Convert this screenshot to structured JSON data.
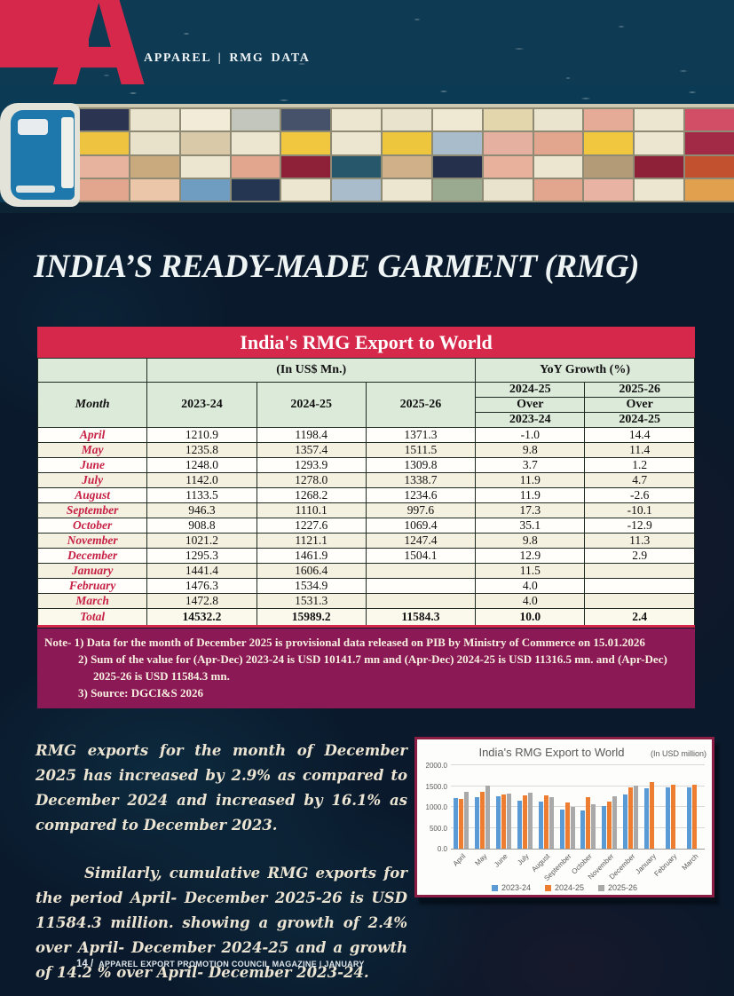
{
  "header": {
    "logo_letter": "A",
    "tagline": "APPAREL | RMG DATA"
  },
  "page_title": "INDIA’S READY-MADE GARMENT (RMG)",
  "colors": {
    "crimson": "#d5284a",
    "maroon_note": "#8b1956",
    "header_green": "#dcead9",
    "page_navy": "#0a192b",
    "chart_border": "#8c1d45"
  },
  "hero": {
    "description": "aerial photo of container ship on dark ocean",
    "container_colors": [
      [
        "#2b3450",
        "#eae3cd",
        "#f1ebd7",
        "#c2c6bd",
        "#46526a",
        "#ece6d0",
        "#e9e2cc",
        "#efe9d4",
        "#e3d6ad",
        "#eae3cd",
        "#e6ab97",
        "#ece5cf",
        "#d14e66"
      ],
      [
        "#eec33f",
        "#e9e2cb",
        "#d9c9a8",
        "#ece5cf",
        "#f0c73e",
        "#ece5cf",
        "#eec63e",
        "#a8bccb",
        "#e6b0a0",
        "#e2a58e",
        "#f0c73e",
        "#ece5cf",
        "#a32a47"
      ],
      [
        "#e8b39e",
        "#c9a97e",
        "#ece5cf",
        "#e2a58e",
        "#8e2138",
        "#27576a",
        "#d0b088",
        "#24304c",
        "#e8b19c",
        "#ece5cf",
        "#b39b77",
        "#8e2138",
        "#c2512f"
      ],
      [
        "#e2a58e",
        "#ecc6a8",
        "#6f9dc2",
        "#253652",
        "#ece5cf",
        "#a8bccb",
        "#ece5cf",
        "#9aaa90",
        "#e9e2cc",
        "#e2a58e",
        "#e8b3a2",
        "#ece5cf",
        "#e0a04e"
      ]
    ]
  },
  "table": {
    "title": "India's RMG Export to World",
    "usd_header": "(In US$ Mn.)",
    "yoy_header": "YoY Growth (%)",
    "month_header": "Month",
    "year_columns": [
      "2023-24",
      "2024-25",
      "2025-26"
    ],
    "growth_columns": [
      {
        "line1": "2024-25",
        "line2": "Over",
        "line3": "2023-24"
      },
      {
        "line1": "2025-26",
        "line2": "Over",
        "line3": "2024-25"
      }
    ],
    "rows": [
      [
        "April",
        "1210.9",
        "1198.4",
        "1371.3",
        "-1.0",
        "14.4"
      ],
      [
        "May",
        "1235.8",
        "1357.4",
        "1511.5",
        "9.8",
        "11.4"
      ],
      [
        "June",
        "1248.0",
        "1293.9",
        "1309.8",
        "3.7",
        "1.2"
      ],
      [
        "July",
        "1142.0",
        "1278.0",
        "1338.7",
        "11.9",
        "4.7"
      ],
      [
        "August",
        "1133.5",
        "1268.2",
        "1234.6",
        "11.9",
        "-2.6"
      ],
      [
        "September",
        "946.3",
        "1110.1",
        "997.6",
        "17.3",
        "-10.1"
      ],
      [
        "October",
        "908.8",
        "1227.6",
        "1069.4",
        "35.1",
        "-12.9"
      ],
      [
        "November",
        "1021.2",
        "1121.1",
        "1247.4",
        "9.8",
        "11.3"
      ],
      [
        "December",
        "1295.3",
        "1461.9",
        "1504.1",
        "12.9",
        "2.9"
      ],
      [
        "January",
        "1441.4",
        "1606.4",
        "",
        "11.5",
        ""
      ],
      [
        "February",
        "1476.3",
        "1534.9",
        "",
        "4.0",
        ""
      ],
      [
        "March",
        "1472.8",
        "1531.3",
        "",
        "4.0",
        ""
      ]
    ],
    "total_row": [
      "Total",
      "14532.2",
      "15989.2",
      "11584.3",
      "10.0",
      "2.4"
    ]
  },
  "note": {
    "line1": "Note- 1) Data for the month of December 2025 is provisional data released on PIB by Ministry of Commerce on 15.01.2026",
    "line2": "2) Sum of the value for (Apr-Dec) 2023-24 is USD 10141.7 mn and (Apr-Dec) 2024-25 is USD 11316.5 mn. and (Apr-Dec)",
    "line3": "2025-26 is USD 11584.3 mn.",
    "line4": "3) Source: DGCI&S 2026"
  },
  "body": {
    "paragraph1": "RMG exports for the month of December 2025 has increased by 2.9% as compared to December 2024 and increased by 16.1% as compared to December 2023.",
    "paragraph2": "Similarly, cumulative RMG exports for the period April- December 2025-26 is USD 11584.3 million. showing a growth of 2.4% over April- December 2024-25 and a growth of 14.2 % over April- December 2023-24."
  },
  "chart_data": {
    "type": "bar",
    "title": "India's RMG Export to World",
    "unit_label": "(In USD million)",
    "categories": [
      "April",
      "May",
      "June",
      "July",
      "August",
      "September",
      "October",
      "November",
      "December",
      "January",
      "February",
      "March"
    ],
    "series": [
      {
        "name": "2023-24",
        "color": "#5b9bd5",
        "values": [
          1210.9,
          1235.8,
          1248.0,
          1142.0,
          1133.5,
          946.3,
          908.8,
          1021.2,
          1295.3,
          1441.4,
          1476.3,
          1472.8
        ]
      },
      {
        "name": "2024-25",
        "color": "#ed7d31",
        "values": [
          1198.4,
          1357.4,
          1293.9,
          1278.0,
          1268.2,
          1110.1,
          1227.6,
          1121.1,
          1461.9,
          1606.4,
          1534.9,
          1531.3
        ]
      },
      {
        "name": "2025-26",
        "color": "#a9a9a9",
        "values": [
          1371.3,
          1511.5,
          1309.8,
          1338.7,
          1234.6,
          997.6,
          1069.4,
          1247.4,
          1504.1,
          null,
          null,
          null
        ]
      }
    ],
    "ylim": [
      0,
      2000
    ],
    "yticks": [
      "2000.0",
      "1500.0",
      "1000.0",
      "500.0",
      "0.0"
    ],
    "legend_position": "bottom",
    "grid": true
  },
  "footer": {
    "page_number": "14 /",
    "text": "APPAREL EXPORT PROMOTION COUNCIL MAGAZINE | JANUARY"
  }
}
